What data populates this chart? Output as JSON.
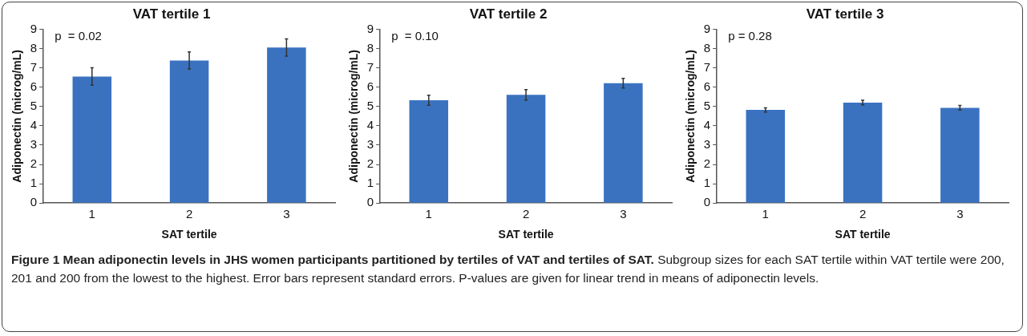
{
  "chart_data": [
    {
      "type": "bar",
      "title": "VAT tertile 1",
      "xlabel": "SAT tertile",
      "ylabel": "Adiponectin (microg/mL)",
      "categories": [
        "1",
        "2",
        "3"
      ],
      "values": [
        6.55,
        7.38,
        8.05
      ],
      "errors": [
        0.45,
        0.44,
        0.45
      ],
      "color": "#3a72c0",
      "ylim": [
        0,
        9
      ],
      "yticks": [
        0,
        1,
        2,
        3,
        4,
        5,
        6,
        7,
        8,
        9
      ],
      "grid": false,
      "legend": false,
      "annotations": [
        "p  = 0.02",
        "Figure 1 Mean adiponectin levels in JHS women participants partitioned by tertiles of VAT and tertiles of SAT.",
        "Subgroup sizes for each SAT tertile within VAT tertile were 200, 201 and 200 from the lowest to the highest. Error bars represent standard errors. P-values are given for linear trend in means of adiponectin levels."
      ]
    },
    {
      "type": "bar",
      "title": "VAT tertile 2",
      "xlabel": "SAT tertile",
      "ylabel": "Adiponectin (microg/mL)",
      "categories": [
        "1",
        "2",
        "3"
      ],
      "values": [
        5.32,
        5.6,
        6.2
      ],
      "errors": [
        0.26,
        0.27,
        0.25
      ],
      "color": "#3a72c0",
      "ylim": [
        0,
        9
      ],
      "yticks": [
        0,
        1,
        2,
        3,
        4,
        5,
        6,
        7,
        8,
        9
      ],
      "grid": false,
      "legend": false,
      "annotations": [
        "p  = 0.10"
      ]
    },
    {
      "type": "bar",
      "title": "VAT tertile 3",
      "xlabel": "SAT tertile",
      "ylabel": "Adiponectin (microg/mL)",
      "categories": [
        "1",
        "2",
        "3"
      ],
      "values": [
        4.82,
        5.2,
        4.93
      ],
      "errors": [
        0.11,
        0.12,
        0.12
      ],
      "color": "#3a72c0",
      "ylim": [
        0,
        9
      ],
      "yticks": [
        0,
        1,
        2,
        3,
        4,
        5,
        6,
        7,
        8,
        9
      ],
      "grid": false,
      "legend": false,
      "annotations": [
        "p = 0.28"
      ]
    }
  ]
}
